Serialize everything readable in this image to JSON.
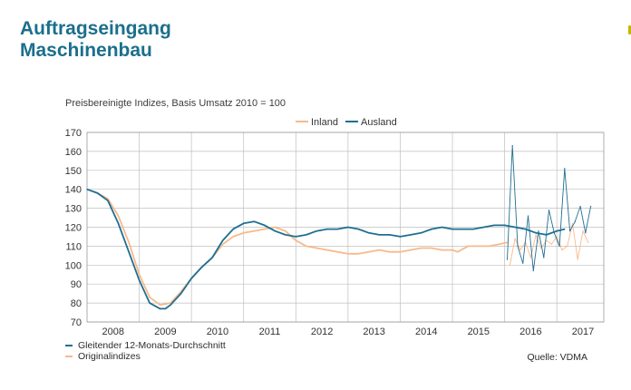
{
  "header": {
    "title_line1": "Auftragseingang",
    "title_line2": "Maschinenbau",
    "subtitle": "Preisbereinigte Indizes, Basis Umsatz 2010 = 100"
  },
  "footer": {
    "legend_smoothed": "Gleitender 12-Monats-Durchschnitt",
    "legend_original": "Originalindizes",
    "source": "Quelle: VDMA"
  },
  "colors": {
    "inland": "#f7b98b",
    "ausland": "#1f6f92",
    "grid": "#bfbfbf",
    "title": "#1b6f8d"
  },
  "chart_data": {
    "type": "line",
    "xlabel": "",
    "ylabel": "",
    "ylim": [
      70,
      170
    ],
    "yticks": [
      70,
      80,
      90,
      100,
      110,
      120,
      130,
      140,
      150,
      160,
      170
    ],
    "xlim": [
      2007.5,
      2017.4
    ],
    "xticks": [
      "2008",
      "2009",
      "2010",
      "2011",
      "2012",
      "2013",
      "2014",
      "2015",
      "2016",
      "2017"
    ],
    "grid": true,
    "legend_position": "top-right",
    "series": [
      {
        "name": "Inland",
        "color": "#f7b98b",
        "kind": "smoothed",
        "x": [
          2007.5,
          2007.7,
          2007.9,
          2008.1,
          2008.3,
          2008.5,
          2008.7,
          2008.9,
          2009.1,
          2009.3,
          2009.5,
          2009.7,
          2009.9,
          2010.1,
          2010.3,
          2010.5,
          2010.7,
          2010.9,
          2011.1,
          2011.3,
          2011.5,
          2011.7,
          2011.9,
          2012.1,
          2012.3,
          2012.5,
          2012.7,
          2012.9,
          2013.1,
          2013.3,
          2013.5,
          2013.7,
          2013.9,
          2014.1,
          2014.3,
          2014.5,
          2014.6,
          2014.8,
          2015.0,
          2015.2,
          2015.4,
          2015.55
        ],
        "values": [
          140,
          138,
          135,
          126,
          112,
          95,
          83,
          79,
          80,
          86,
          93,
          99,
          104,
          111,
          115,
          117,
          118,
          119,
          120,
          118,
          113,
          110,
          109,
          108,
          107,
          106,
          106,
          107,
          108,
          107,
          107,
          108,
          109,
          109,
          108,
          108,
          107,
          110,
          110,
          110,
          111,
          112
        ]
      },
      {
        "name": "Ausland",
        "color": "#1f6f92",
        "kind": "smoothed",
        "x": [
          2007.5,
          2007.7,
          2007.9,
          2008.1,
          2008.3,
          2008.5,
          2008.7,
          2008.9,
          2009.0,
          2009.1,
          2009.3,
          2009.5,
          2009.7,
          2009.9,
          2010.1,
          2010.3,
          2010.5,
          2010.7,
          2010.9,
          2011.1,
          2011.3,
          2011.5,
          2011.7,
          2011.9,
          2012.1,
          2012.3,
          2012.5,
          2012.7,
          2012.9,
          2013.1,
          2013.3,
          2013.5,
          2013.7,
          2013.9,
          2014.1,
          2014.3,
          2014.5,
          2014.7,
          2014.9,
          2015.1,
          2015.3,
          2015.5,
          2015.7,
          2015.9,
          2016.1,
          2016.3,
          2016.5,
          2016.65
        ],
        "values": [
          140,
          138,
          134,
          122,
          107,
          92,
          80,
          77,
          77,
          79,
          85,
          93,
          99,
          104,
          113,
          119,
          122,
          123,
          121,
          118,
          116,
          115,
          116,
          118,
          119,
          119,
          120,
          119,
          117,
          116,
          116,
          115,
          116,
          117,
          119,
          120,
          119,
          119,
          119,
          120,
          121,
          121,
          120,
          119,
          117,
          116,
          118,
          119
        ]
      },
      {
        "name": "Inland Originalindizes",
        "color": "#f7b98b",
        "kind": "original",
        "x": [
          2015.6,
          2015.7,
          2015.8,
          2015.9,
          2016.0,
          2016.1,
          2016.2,
          2016.3,
          2016.4,
          2016.5,
          2016.6,
          2016.7,
          2016.8,
          2016.9,
          2017.0,
          2017.1
        ],
        "values": [
          100,
          114,
          108,
          112,
          104,
          116,
          109,
          113,
          111,
          115,
          108,
          110,
          122,
          103,
          118,
          112
        ]
      },
      {
        "name": "Ausland Originalindizes",
        "color": "#1f6f92",
        "kind": "original",
        "x": [
          2015.55,
          2015.65,
          2015.75,
          2015.85,
          2015.95,
          2016.05,
          2016.15,
          2016.25,
          2016.35,
          2016.45,
          2016.55,
          2016.65,
          2016.75,
          2016.85,
          2016.95,
          2017.05,
          2017.15
        ],
        "values": [
          103,
          163,
          110,
          101,
          126,
          97,
          118,
          104,
          129,
          117,
          110,
          151,
          118,
          123,
          131,
          117,
          131
        ]
      }
    ]
  }
}
